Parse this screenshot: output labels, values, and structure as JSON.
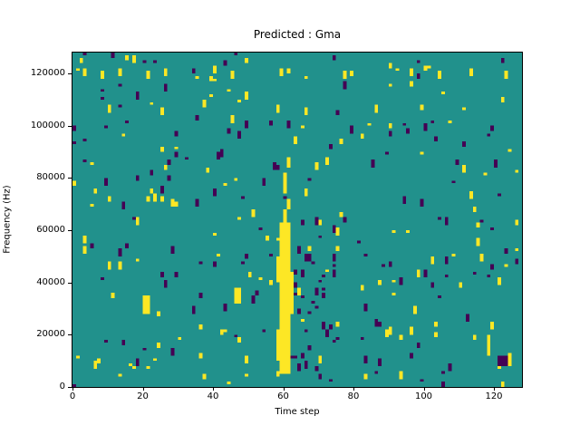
{
  "chart_data": {
    "type": "heatmap",
    "title": "Predicted : Gma",
    "xlabel": "Time step",
    "ylabel": "Frequency (Hz)",
    "xlim": [
      0,
      128
    ],
    "ylim": [
      0,
      128000
    ],
    "x_ticks": [
      0,
      20,
      40,
      60,
      80,
      100,
      120
    ],
    "y_ticks": [
      0,
      20000,
      40000,
      60000,
      80000,
      100000,
      120000
    ],
    "grid": {
      "cols": 128,
      "rows": 128,
      "hz_per_row": 1000
    },
    "colors": {
      "background_mid": "#21918c",
      "high_yellow": "#fde725",
      "low_purple": "#440154",
      "axes": "#000000",
      "figure_background": "#ffffff"
    },
    "legend": "none",
    "features": {
      "yellow_band_rects": [
        {
          "x": 59,
          "y": 5,
          "w": 3,
          "h": 58
        },
        {
          "x": 58,
          "y": 10,
          "w": 1,
          "h": 12
        },
        {
          "x": 58,
          "y": 40,
          "w": 1,
          "h": 10
        },
        {
          "x": 62,
          "y": 28,
          "w": 1,
          "h": 16
        },
        {
          "x": 60,
          "y": 63,
          "w": 1,
          "h": 5
        },
        {
          "x": 61,
          "y": 68,
          "w": 1,
          "h": 4
        },
        {
          "x": 60,
          "y": 74,
          "w": 1,
          "h": 8
        },
        {
          "x": 61,
          "y": 84,
          "w": 1,
          "h": 3
        },
        {
          "x": 20,
          "y": 28,
          "w": 2,
          "h": 7
        },
        {
          "x": 46,
          "y": 32,
          "w": 2,
          "h": 6
        },
        {
          "x": 118,
          "y": 12,
          "w": 1,
          "h": 8
        },
        {
          "x": 124,
          "y": 8,
          "w": 1,
          "h": 5
        }
      ],
      "purple_rects": [
        {
          "x": 121,
          "y": 8,
          "w": 3,
          "h": 4
        }
      ],
      "top_row_dashes": {
        "y": 119,
        "h": 3,
        "x_positions": [
          3,
          8,
          13,
          21,
          26,
          45,
          59,
          77,
          96,
          104,
          113,
          123
        ]
      },
      "purple_cluster": {
        "x": 63,
        "y": 3,
        "w": 13,
        "h": 60,
        "start_density": 0.045,
        "max_run": 3
      }
    },
    "noise": {
      "seed": 7,
      "yellow_start_density": 0.008,
      "purple_start_density": 0.008,
      "max_run": 3
    }
  }
}
